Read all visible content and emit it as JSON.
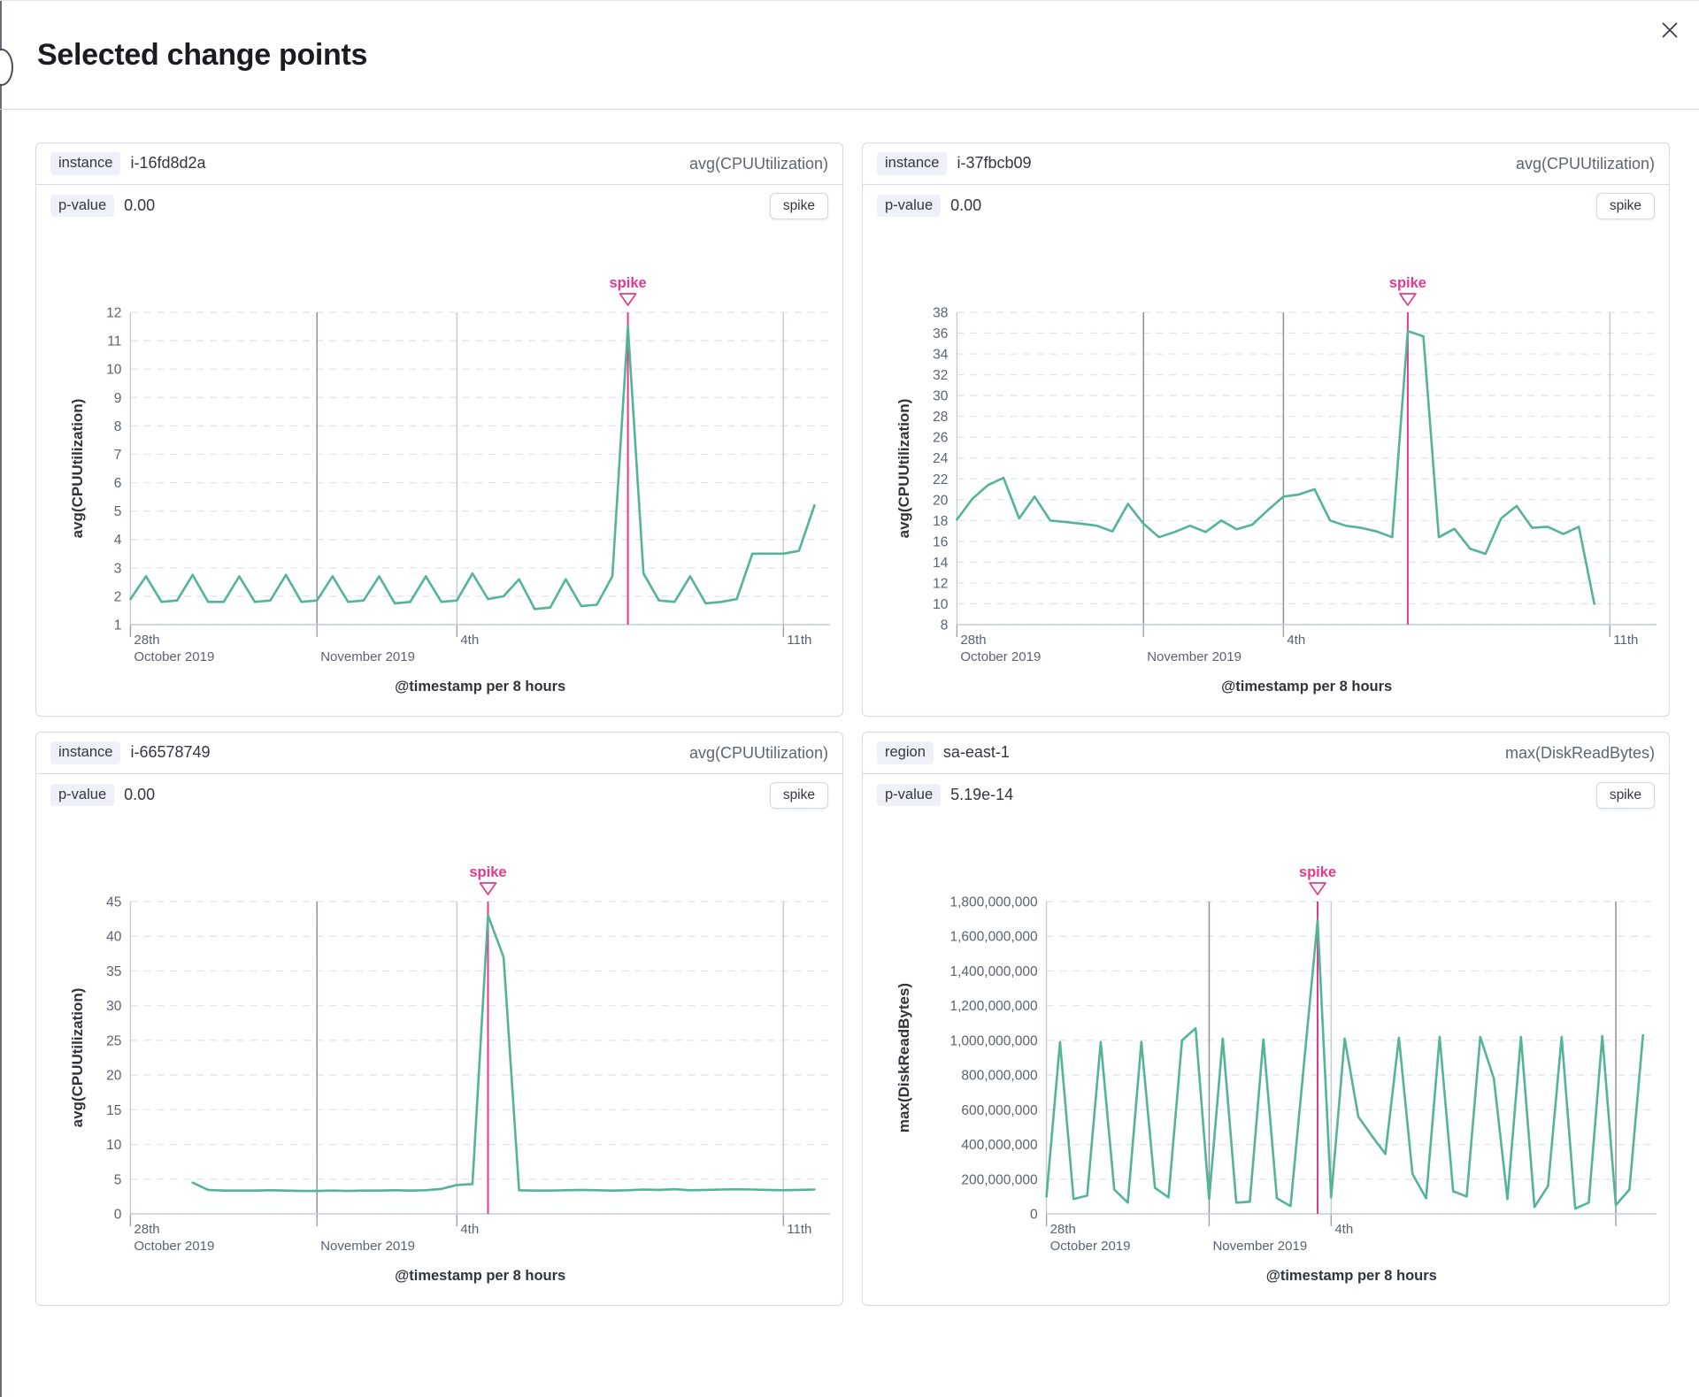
{
  "modal": {
    "title": "Selected change points"
  },
  "colors": {
    "accent_pink": "#e33a8c",
    "series_green": "#54b399",
    "grid_dash": "#dde2ec",
    "axis_line": "#c6ccd8",
    "tick_text": "#5b6270",
    "axis_title_text": "#30353d",
    "event_line_dark": "#8a92a2",
    "event_line_light": "#c7ccd7",
    "tick_mark": "#9aa2b0"
  },
  "cards": [
    {
      "field_label": "instance",
      "field_value": "i-16fd8d2a",
      "metric": "avg(CPUUtilization)",
      "p_label": "p-value",
      "p_value": "0.00",
      "type_badge": "spike",
      "chart_data": {
        "type": "line",
        "ylabel": "avg(CPUUtilization)",
        "xlabel": "@timestamp per 8 hours",
        "y_min": 1,
        "y_max": 12,
        "y_step": 1,
        "y_format": "plain",
        "n_dom": 46,
        "values": [
          1.9,
          2.7,
          1.8,
          1.85,
          2.75,
          1.8,
          1.8,
          2.7,
          1.8,
          1.85,
          2.75,
          1.8,
          1.85,
          2.7,
          1.8,
          1.85,
          2.7,
          1.75,
          1.8,
          2.7,
          1.8,
          1.85,
          2.8,
          1.9,
          2.0,
          2.6,
          1.55,
          1.6,
          2.6,
          1.65,
          1.7,
          2.7,
          11.5,
          2.8,
          1.85,
          1.8,
          2.7,
          1.75,
          1.8,
          1.9,
          3.5,
          3.5,
          3.5,
          3.6,
          5.2
        ],
        "x_ticks": [
          {
            "i": 0,
            "row1": "28th",
            "row2": "October 2019",
            "line": "none"
          },
          {
            "i": 12,
            "row1": "",
            "row2": "November 2019",
            "line": "dark"
          },
          {
            "i": 21,
            "row1": "4th",
            "row2": "",
            "line": "light"
          },
          {
            "i": 42,
            "row1": "11th",
            "row2": "",
            "line": "light"
          }
        ],
        "annotation": {
          "label": "spike",
          "i": 32
        }
      }
    },
    {
      "field_label": "instance",
      "field_value": "i-37fbcb09",
      "metric": "avg(CPUUtilization)",
      "p_label": "p-value",
      "p_value": "0.00",
      "type_badge": "spike",
      "chart_data": {
        "type": "line",
        "ylabel": "avg(CPUUtilization)",
        "xlabel": "@timestamp per 8 hours",
        "y_min": 8,
        "y_max": 38,
        "y_step": 2,
        "y_format": "plain",
        "n_dom": 46,
        "values": [
          18.1,
          20.1,
          21.4,
          22.1,
          18.2,
          20.3,
          18.0,
          17.85,
          17.7,
          17.5,
          16.95,
          19.6,
          17.7,
          16.4,
          16.9,
          17.5,
          16.9,
          18.0,
          17.15,
          17.6,
          19.0,
          20.3,
          20.5,
          21.0,
          18.0,
          17.5,
          17.3,
          16.95,
          16.4,
          36.2,
          35.7,
          16.4,
          17.2,
          15.3,
          14.8,
          18.2,
          19.4,
          17.3,
          17.4,
          16.7,
          17.4,
          10.0
        ],
        "x_ticks": [
          {
            "i": 0,
            "row1": "28th",
            "row2": "October 2019",
            "line": "none"
          },
          {
            "i": 12,
            "row1": "",
            "row2": "November 2019",
            "line": "dark"
          },
          {
            "i": 21,
            "row1": "4th",
            "row2": "",
            "line": "dark"
          },
          {
            "i": 42,
            "row1": "11th",
            "row2": "",
            "line": "light"
          }
        ],
        "annotation": {
          "label": "spike",
          "i": 29
        }
      }
    },
    {
      "field_label": "instance",
      "field_value": "i-66578749",
      "metric": "avg(CPUUtilization)",
      "p_label": "p-value",
      "p_value": "0.00",
      "type_badge": "spike",
      "chart_data": {
        "type": "line",
        "ylabel": "avg(CPUUtilization)",
        "xlabel": "@timestamp per 8 hours",
        "y_min": 0,
        "y_max": 45,
        "y_step": 5,
        "y_format": "plain",
        "n_dom": 46,
        "values": [
          null,
          null,
          null,
          null,
          4.5,
          3.45,
          3.35,
          3.35,
          3.35,
          3.4,
          3.35,
          3.3,
          3.3,
          3.35,
          3.3,
          3.35,
          3.35,
          3.4,
          3.35,
          3.4,
          3.6,
          4.15,
          4.3,
          43,
          37,
          3.4,
          3.35,
          3.35,
          3.4,
          3.45,
          3.4,
          3.35,
          3.4,
          3.5,
          3.45,
          3.55,
          3.4,
          3.45,
          3.5,
          3.55,
          3.5,
          3.45,
          3.4,
          3.45,
          3.5
        ],
        "x_ticks": [
          {
            "i": 0,
            "row1": "28th",
            "row2": "October 2019",
            "line": "none"
          },
          {
            "i": 12,
            "row1": "",
            "row2": "November 2019",
            "line": "dark"
          },
          {
            "i": 21,
            "row1": "4th",
            "row2": "",
            "line": "light"
          },
          {
            "i": 42,
            "row1": "11th",
            "row2": "",
            "line": "light"
          }
        ],
        "annotation": {
          "label": "spike",
          "i": 23
        }
      }
    },
    {
      "field_label": "region",
      "field_value": "sa-east-1",
      "metric": "max(DiskReadBytes)",
      "p_label": "p-value",
      "p_value": "5.19e-14",
      "type_badge": "spike",
      "chart_data": {
        "type": "line",
        "ylabel": "max(DiskReadBytes)",
        "xlabel": "@timestamp per 8 hours",
        "y_min": 0,
        "y_max": 1800000000,
        "y_step": 200000000,
        "y_format": "comma",
        "n_dom": 46,
        "values": [
          100000000,
          990000000,
          85000000,
          105000000,
          990000000,
          140000000,
          65000000,
          990000000,
          150000000,
          95000000,
          1000000000,
          1070000000,
          85000000,
          1010000000,
          65000000,
          70000000,
          1005000000,
          90000000,
          45000000,
          870000000,
          1690000000,
          95000000,
          1010000000,
          560000000,
          450000000,
          345000000,
          1015000000,
          230000000,
          90000000,
          1020000000,
          130000000,
          100000000,
          1020000000,
          780000000,
          85000000,
          1020000000,
          40000000,
          160000000,
          1020000000,
          30000000,
          65000000,
          1025000000,
          50000000,
          140000000,
          1030000000
        ],
        "x_ticks": [
          {
            "i": 0,
            "row1": "28th",
            "row2": "October 2019",
            "line": "none"
          },
          {
            "i": 12,
            "row1": "",
            "row2": "November 2019",
            "line": "dark"
          },
          {
            "i": 21,
            "row1": "4th",
            "row2": "",
            "line": "light"
          },
          {
            "i": 42,
            "row1": "",
            "row2": "",
            "line": "dark"
          }
        ],
        "annotation": {
          "label": "spike",
          "i": 20
        }
      }
    }
  ]
}
